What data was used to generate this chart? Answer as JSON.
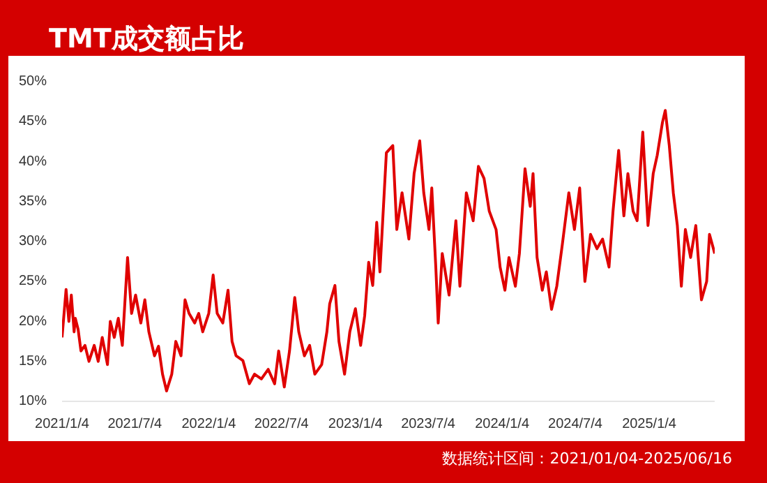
{
  "chart_data": {
    "type": "line",
    "title": "TMT成交额占比",
    "annotations": [
      "数据统计区间：2021/01/04-2025/06/16"
    ],
    "x": [
      "2021-01-04",
      "2021-01-14",
      "2021-01-21",
      "2021-01-27",
      "2021-02-03",
      "2021-02-06",
      "2021-02-13",
      "2021-02-20",
      "2021-03-02",
      "2021-03-12",
      "2021-03-25",
      "2021-04-04",
      "2021-04-14",
      "2021-04-27",
      "2021-05-04",
      "2021-05-14",
      "2021-05-24",
      "2021-06-03",
      "2021-06-16",
      "2021-06-26",
      "2021-07-06",
      "2021-07-19",
      "2021-07-29",
      "2021-08-08",
      "2021-08-22",
      "2021-09-01",
      "2021-09-11",
      "2021-09-21",
      "2021-10-04",
      "2021-10-14",
      "2021-10-27",
      "2021-11-06",
      "2021-11-16",
      "2021-11-30",
      "2021-12-10",
      "2021-12-20",
      "2022-01-04",
      "2022-01-15",
      "2022-01-25",
      "2022-02-08",
      "2022-02-21",
      "2022-03-03",
      "2022-03-13",
      "2022-03-30",
      "2022-04-15",
      "2022-04-28",
      "2022-05-15",
      "2022-06-01",
      "2022-06-17",
      "2022-06-27",
      "2022-07-11",
      "2022-07-24",
      "2022-08-06",
      "2022-08-16",
      "2022-08-30",
      "2022-09-12",
      "2022-09-25",
      "2022-10-12",
      "2022-10-25",
      "2022-11-01",
      "2022-11-14",
      "2022-11-24",
      "2022-12-08",
      "2022-12-21",
      "2023-01-04",
      "2023-01-17",
      "2023-01-27",
      "2023-02-06",
      "2023-02-16",
      "2023-02-26",
      "2023-03-06",
      "2023-03-22",
      "2023-04-07",
      "2023-04-17",
      "2023-04-30",
      "2023-05-17",
      "2023-05-30",
      "2023-06-13",
      "2023-06-23",
      "2023-07-06",
      "2023-07-13",
      "2023-07-23",
      "2023-07-29",
      "2023-08-08",
      "2023-08-25",
      "2023-09-11",
      "2023-09-21",
      "2023-10-07",
      "2023-10-24",
      "2023-11-06",
      "2023-11-20",
      "2023-12-03",
      "2023-12-20",
      "2023-12-30",
      "2024-01-11",
      "2024-01-21",
      "2024-02-06",
      "2024-02-16",
      "2024-03-01",
      "2024-03-14",
      "2024-03-21",
      "2024-03-31",
      "2024-04-13",
      "2024-04-23",
      "2024-05-06",
      "2024-05-19",
      "2024-06-02",
      "2024-06-18",
      "2024-07-02",
      "2024-07-15",
      "2024-07-28",
      "2024-08-11",
      "2024-08-27",
      "2024-09-10",
      "2024-09-26",
      "2024-10-06",
      "2024-10-20",
      "2024-11-02",
      "2024-11-12",
      "2024-11-25",
      "2024-12-05",
      "2024-12-19",
      "2025-01-01",
      "2025-01-14",
      "2025-01-24",
      "2025-02-06",
      "2025-02-13",
      "2025-02-23",
      "2025-03-05",
      "2025-03-15",
      "2025-03-25",
      "2025-04-04",
      "2025-04-17",
      "2025-04-30",
      "2025-05-14",
      "2025-05-27",
      "2025-06-03",
      "2025-06-16"
    ],
    "values": [
      18,
      24,
      20,
      23.3,
      18.7,
      20.4,
      19,
      16.3,
      17,
      15,
      17,
      15,
      18,
      14.6,
      20,
      18,
      20.4,
      17,
      28,
      21,
      23.3,
      19.8,
      22.7,
      18.7,
      15.7,
      16.9,
      13.4,
      11.3,
      13.4,
      17.5,
      15.7,
      22.7,
      21,
      19.8,
      21,
      18.7,
      21,
      25.8,
      21,
      19.8,
      23.9,
      17.5,
      15.7,
      15.1,
      12.2,
      13.4,
      12.8,
      14,
      12.2,
      16.3,
      11.8,
      16.3,
      23,
      18.7,
      15.7,
      17,
      13.4,
      14.6,
      18.7,
      22.2,
      24.5,
      17.5,
      13.4,
      18.7,
      21.6,
      17,
      20.7,
      27.4,
      24.5,
      32.4,
      26.2,
      41.1,
      42,
      31.5,
      36.1,
      30.3,
      38.5,
      42.6,
      36.1,
      31.5,
      36.7,
      26.8,
      19.8,
      28.5,
      23.3,
      32.6,
      24.4,
      36.1,
      32.6,
      39.4,
      37.9,
      33.8,
      31.5,
      26.8,
      23.9,
      28,
      24.4,
      28.5,
      39.1,
      34.4,
      38.5,
      28,
      23.9,
      26.2,
      21.5,
      24.4,
      29.7,
      36.1,
      31.5,
      36.7,
      25,
      30.9,
      29.1,
      30.3,
      26.8,
      33.8,
      41.4,
      33.2,
      38.5,
      33.8,
      32.6,
      43.7,
      32,
      38.5,
      40.8,
      44.9,
      46.4,
      42,
      36.1,
      32,
      24.4,
      31.5,
      28,
      32,
      22.7,
      25,
      30.9,
      28.5
    ],
    "color": "#e00000",
    "xticks": [
      {
        "value": "2021-01-04",
        "label": "2021/1/4"
      },
      {
        "value": "2021-07-04",
        "label": "2021/7/4"
      },
      {
        "value": "2022-01-04",
        "label": "2022/1/4"
      },
      {
        "value": "2022-07-04",
        "label": "2022/7/4"
      },
      {
        "value": "2023-01-04",
        "label": "2023/1/4"
      },
      {
        "value": "2023-07-04",
        "label": "2023/7/4"
      },
      {
        "value": "2024-01-04",
        "label": "2024/1/4"
      },
      {
        "value": "2024-07-04",
        "label": "2024/7/4"
      },
      {
        "value": "2025-01-04",
        "label": "2025/1/4"
      }
    ],
    "xlim": [
      "2021-01-04",
      "2025-06-16"
    ],
    "ylim": [
      10,
      50
    ],
    "yticks": [
      {
        "value": 10,
        "label": "10%"
      },
      {
        "value": 15,
        "label": "15%"
      },
      {
        "value": 20,
        "label": "20%"
      },
      {
        "value": 25,
        "label": "25%"
      },
      {
        "value": 30,
        "label": "30%"
      },
      {
        "value": 35,
        "label": "35%"
      },
      {
        "value": 40,
        "label": "40%"
      },
      {
        "value": 45,
        "label": "45%"
      },
      {
        "value": 50,
        "label": "50%"
      }
    ],
    "grid": false
  }
}
